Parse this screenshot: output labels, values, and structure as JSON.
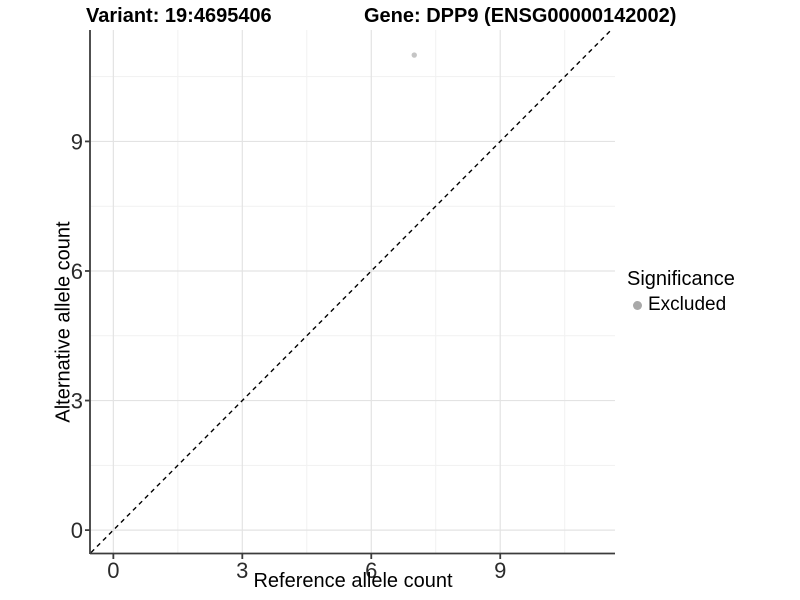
{
  "chart_data": {
    "type": "scatter",
    "title_left": "Variant: 19:4695406",
    "title_right": "Gene: DPP9 (ENSG00000142002)",
    "xlabel": "Reference allele count",
    "ylabel": "Alternative allele count",
    "x_ticks": [
      0,
      3,
      6,
      9
    ],
    "y_ticks": [
      0,
      3,
      6,
      9
    ],
    "x_minor_gridlines": [
      1.5,
      4.5,
      7.5,
      10.5
    ],
    "y_minor_gridlines": [
      1.5,
      4.5,
      7.5,
      10.5
    ],
    "xlim": [
      -0.52,
      11.67
    ],
    "ylim": [
      -0.53,
      11.58
    ],
    "grid": true,
    "points": [
      {
        "x": 7,
        "y": 11,
        "significance": "Excluded"
      }
    ],
    "reference_line": {
      "kind": "identity",
      "equation": "y = x",
      "style": "dashed"
    },
    "legend": {
      "title": "Significance",
      "position": "right",
      "items": [
        {
          "label": "Excluded",
          "swatch": "circle"
        }
      ]
    }
  },
  "colors": {
    "background": "#ffffff",
    "grid_major": "#e3e3e3",
    "grid_minor": "#f1f1f1",
    "axis_line": "#3c3c3c",
    "tick_mark": "#3c3c3c",
    "tick_label": "#2b2b2b",
    "reference_line": "#000000",
    "point": "#c5c5c5",
    "legend_key": "#a9a9a9",
    "text": "#000000"
  }
}
